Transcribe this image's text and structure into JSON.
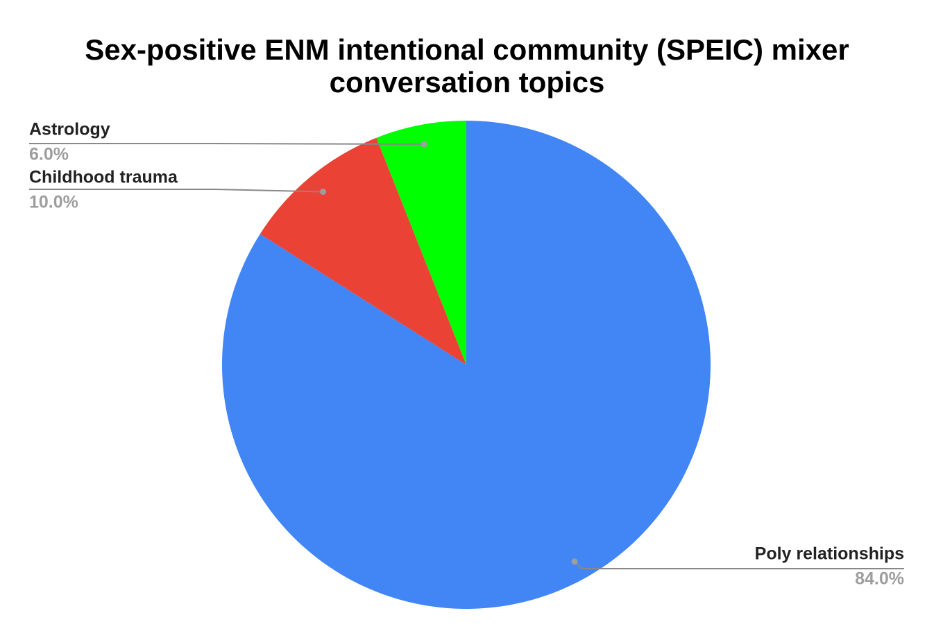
{
  "chart_data": {
    "type": "pie",
    "title": "Sex-positive ENM intentional community (SPEIC) mixer conversation topics",
    "categories": [
      "Poly relationships",
      "Childhood trauma",
      "Astrology"
    ],
    "values": [
      84,
      10,
      6
    ],
    "value_labels": [
      "84.0%",
      "10.0%",
      "6.0%"
    ],
    "colors": [
      "#4285f4",
      "#ea4335",
      "#00ff00"
    ]
  }
}
